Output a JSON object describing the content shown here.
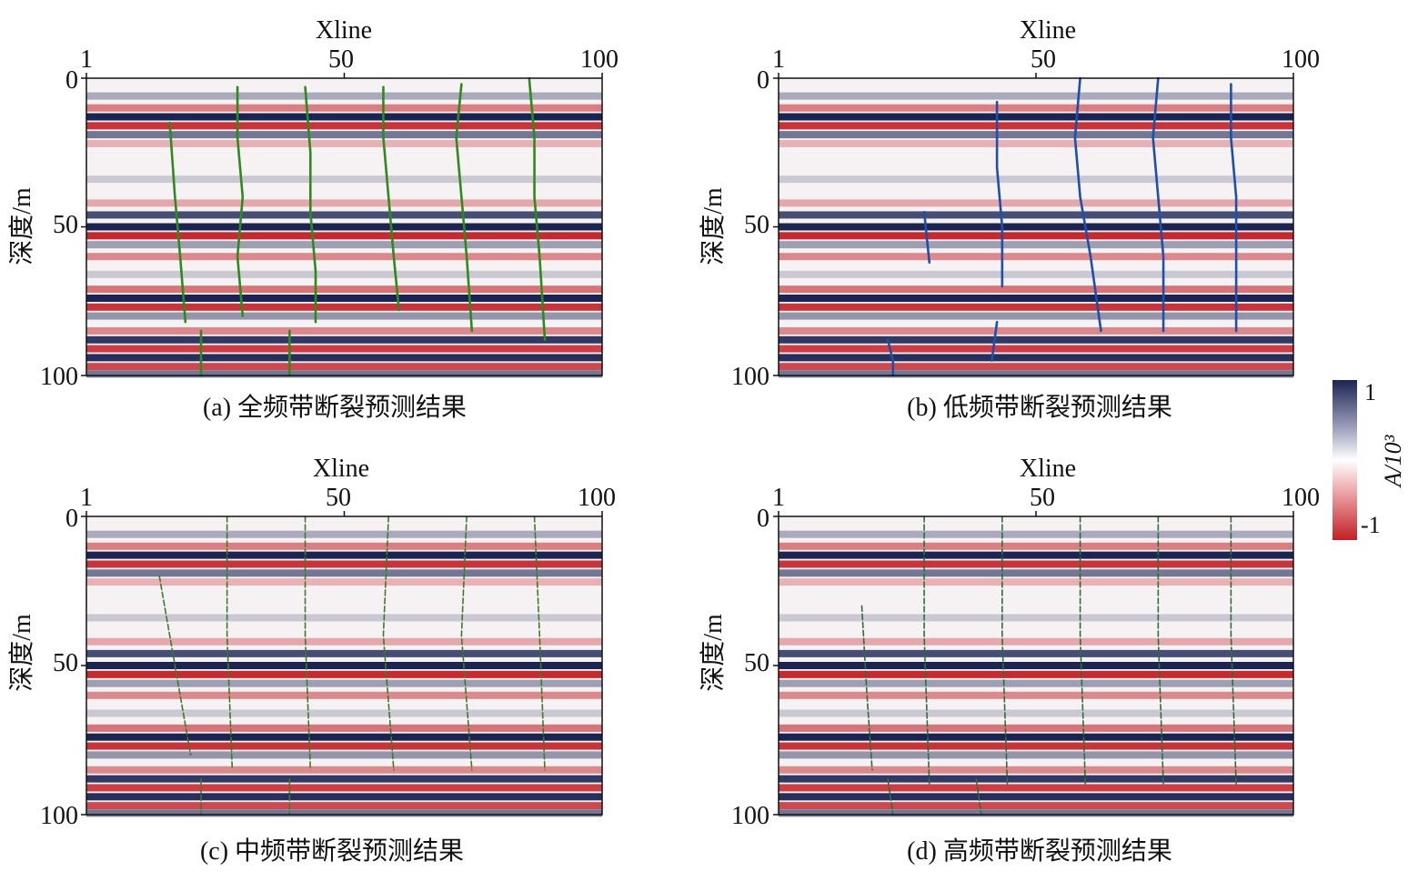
{
  "chart_data": {
    "type": "heatmap",
    "panels": [
      {
        "key": "a",
        "caption": "(a) 全频带断裂预测结果",
        "xlabel": "Xline",
        "ylabel": "深度/m",
        "xticks": [
          "1",
          "50",
          "100"
        ],
        "yticks": [
          "0",
          "50",
          "100"
        ],
        "xlim": [
          1,
          100
        ],
        "ylim": [
          0,
          100
        ],
        "fault_color": "#2f8a1e",
        "fault_style": "continuous",
        "faults": [
          {
            "xline": [
              30,
              30,
              31,
              30,
              31
            ],
            "depth": [
              3,
              20,
              40,
              60,
              80
            ]
          },
          {
            "xline": [
              43,
              44,
              44,
              45,
              45
            ],
            "depth": [
              3,
              25,
              45,
              65,
              82
            ]
          },
          {
            "xline": [
              58,
              58,
              59,
              60,
              61
            ],
            "depth": [
              3,
              20,
              40,
              60,
              78
            ]
          },
          {
            "xline": [
              73,
              72,
              73,
              74,
              75
            ],
            "depth": [
              2,
              20,
              40,
              60,
              85
            ]
          },
          {
            "xline": [
              86,
              87,
              87,
              88,
              89
            ],
            "depth": [
              0,
              20,
              40,
              60,
              88
            ]
          },
          {
            "xline": [
              17,
              18,
              19,
              20
            ],
            "depth": [
              15,
              40,
              60,
              82
            ]
          },
          {
            "xline": [
              23,
              23
            ],
            "depth": [
              85,
              100
            ]
          },
          {
            "xline": [
              40,
              40
            ],
            "depth": [
              85,
              100
            ]
          }
        ]
      },
      {
        "key": "b",
        "caption": "(b) 低频带断裂预测结果",
        "xlabel": "Xline",
        "ylabel": "深度/m",
        "xticks": [
          "1",
          "50",
          "100"
        ],
        "yticks": [
          "0",
          "50",
          "100"
        ],
        "xlim": [
          1,
          100
        ],
        "ylim": [
          0,
          100
        ],
        "fault_color": "#1f4fa8",
        "fault_style": "continuous",
        "faults": [
          {
            "xline": [
              59,
              58,
              59,
              61,
              63
            ],
            "depth": [
              0,
              20,
              40,
              60,
              85
            ]
          },
          {
            "xline": [
              74,
              73,
              74,
              75,
              75
            ],
            "depth": [
              0,
              20,
              40,
              60,
              85
            ]
          },
          {
            "xline": [
              88,
              88,
              89,
              89,
              89
            ],
            "depth": [
              2,
              20,
              40,
              60,
              85
            ]
          },
          {
            "xline": [
              43,
              43,
              44,
              44
            ],
            "depth": [
              8,
              30,
              50,
              70
            ]
          },
          {
            "xline": [
              29,
              30
            ],
            "depth": [
              45,
              62
            ]
          },
          {
            "xline": [
              22,
              23,
              23
            ],
            "depth": [
              88,
              95,
              100
            ]
          },
          {
            "xline": [
              43,
              42
            ],
            "depth": [
              82,
              95
            ]
          }
        ]
      },
      {
        "key": "c",
        "caption": "(c) 中频带断裂预测结果",
        "xlabel": "Xline",
        "ylabel": "深度/m",
        "xticks": [
          "1",
          "50",
          "100"
        ],
        "yticks": [
          "0",
          "50",
          "100"
        ],
        "xlim": [
          1,
          100
        ],
        "ylim": [
          0,
          100
        ],
        "fault_color": "#3d7a2a",
        "fault_style": "dashed",
        "faults": [
          {
            "xline": [
              28,
              28,
              29
            ],
            "depth": [
              0,
              40,
              85
            ]
          },
          {
            "xline": [
              43,
              43,
              44
            ],
            "depth": [
              0,
              40,
              85
            ]
          },
          {
            "xline": [
              59,
              58,
              60
            ],
            "depth": [
              0,
              40,
              85
            ]
          },
          {
            "xline": [
              74,
              73,
              75
            ],
            "depth": [
              0,
              40,
              85
            ]
          },
          {
            "xline": [
              87,
              88,
              89
            ],
            "depth": [
              0,
              40,
              85
            ]
          },
          {
            "xline": [
              15,
              18,
              21
            ],
            "depth": [
              20,
              50,
              80
            ]
          },
          {
            "xline": [
              23,
              23
            ],
            "depth": [
              88,
              100
            ]
          },
          {
            "xline": [
              40,
              40
            ],
            "depth": [
              88,
              100
            ]
          }
        ]
      },
      {
        "key": "d",
        "caption": "(d) 高频带断裂预测结果",
        "xlabel": "Xline",
        "ylabel": "深度/m",
        "xticks": [
          "1",
          "50",
          "100"
        ],
        "yticks": [
          "0",
          "50",
          "100"
        ],
        "xlim": [
          1,
          100
        ],
        "ylim": [
          0,
          100
        ],
        "fault_color": "#2f6d3a",
        "fault_style": "dashed",
        "faults": [
          {
            "xline": [
              29,
              29,
              30
            ],
            "depth": [
              0,
              40,
              90
            ]
          },
          {
            "xline": [
              44,
              44,
              45
            ],
            "depth": [
              0,
              40,
              90
            ]
          },
          {
            "xline": [
              59,
              59,
              60
            ],
            "depth": [
              0,
              40,
              90
            ]
          },
          {
            "xline": [
              74,
              74,
              75
            ],
            "depth": [
              0,
              40,
              90
            ]
          },
          {
            "xline": [
              88,
              88,
              89
            ],
            "depth": [
              0,
              40,
              90
            ]
          },
          {
            "xline": [
              17,
              18,
              19
            ],
            "depth": [
              30,
              60,
              85
            ]
          },
          {
            "xline": [
              22,
              23
            ],
            "depth": [
              88,
              100
            ]
          },
          {
            "xline": [
              39,
              40
            ],
            "depth": [
              88,
              100
            ]
          }
        ]
      }
    ],
    "colorbar": {
      "label": "A/10³",
      "ticks": [
        "1",
        "-1"
      ],
      "range": [
        -1,
        1
      ],
      "colors": [
        "#c21f25",
        "#ffffff",
        "#1c2452"
      ]
    }
  }
}
